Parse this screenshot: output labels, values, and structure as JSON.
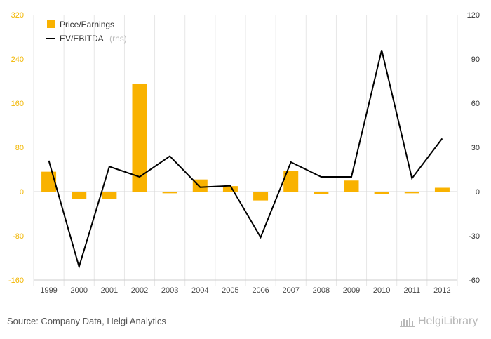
{
  "chart_data": {
    "type": "bar+line",
    "categories": [
      "1999",
      "2000",
      "2001",
      "2002",
      "2003",
      "2004",
      "2005",
      "2006",
      "2007",
      "2008",
      "2009",
      "2010",
      "2011",
      "2012"
    ],
    "series": [
      {
        "name": "Price/Earnings",
        "type": "bar",
        "axis": "left",
        "color": "#f9b200",
        "values": [
          36,
          -13,
          -13,
          195,
          -3,
          22,
          10,
          -16,
          38,
          -4,
          20,
          -5,
          -3,
          7
        ]
      },
      {
        "name": "EV/EBITDA",
        "name_suffix": "(rhs)",
        "type": "line",
        "axis": "right",
        "color": "#000000",
        "values": [
          21,
          -51,
          17,
          10,
          24,
          3,
          4,
          -31,
          20,
          10,
          10,
          96,
          9,
          36
        ]
      }
    ],
    "y_left": {
      "ylim": [
        -160,
        320
      ],
      "ticks": [
        320,
        240,
        160,
        80,
        0,
        -80,
        -160
      ],
      "color": "#f2b600"
    },
    "y_right": {
      "ylim": [
        -60,
        120
      ],
      "ticks": [
        120,
        90,
        60,
        30,
        0,
        -30,
        -60
      ]
    },
    "grid": "vertical",
    "legend": "top-left"
  },
  "legend": {
    "pe_label": "Price/Earnings",
    "ev_label": "EV/EBITDA",
    "ev_suffix": "(rhs)"
  },
  "footer": {
    "source": "Source: Company Data, Helgi Analytics",
    "brand": "HelgiLibrary"
  }
}
